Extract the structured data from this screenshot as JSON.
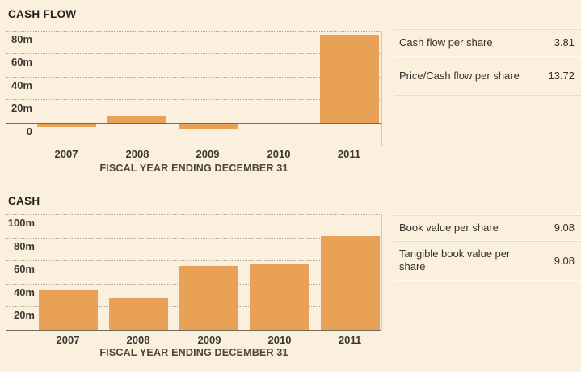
{
  "page": {
    "background_color": "#FBEFDD",
    "bar_color": "#E9A057",
    "gridline_color": "#B2A792",
    "axis_color": "#6E6A5D"
  },
  "chart_data": [
    {
      "type": "bar",
      "title": "CASH FLOW",
      "xlabel": "FISCAL YEAR ENDING DECEMBER 31",
      "categories": [
        "2007",
        "2008",
        "2009",
        "2010",
        "2011"
      ],
      "values": [
        -3,
        6,
        -5,
        0,
        76
      ],
      "unit": "millions",
      "ylim": [
        -20,
        80
      ],
      "grid": "dotted",
      "legend": "none",
      "yticks": [
        {
          "label": "80m",
          "value": 80
        },
        {
          "label": "60m",
          "value": 60
        },
        {
          "label": "40m",
          "value": 40
        },
        {
          "label": "20m",
          "value": 20
        },
        {
          "label": "0",
          "value": 0
        }
      ]
    },
    {
      "type": "bar",
      "title": "CASH",
      "xlabel": "FISCAL YEAR ENDING DECEMBER 31",
      "categories": [
        "2007",
        "2008",
        "2009",
        "2010",
        "2011"
      ],
      "values": [
        35,
        28,
        55,
        57,
        81
      ],
      "unit": "millions",
      "ylim": [
        0,
        100
      ],
      "grid": "dotted",
      "legend": "none",
      "yticks": [
        {
          "label": "100m",
          "value": 100
        },
        {
          "label": "80m",
          "value": 80
        },
        {
          "label": "60m",
          "value": 60
        },
        {
          "label": "40m",
          "value": 40
        },
        {
          "label": "20m",
          "value": 20
        },
        {
          "label": "",
          "value": 0
        }
      ]
    }
  ],
  "stats_panels": [
    {
      "rows": [
        {
          "label": "Cash flow per share",
          "value": "3.81"
        },
        {
          "label": "Price/Cash flow per share",
          "value": "13.72"
        }
      ]
    },
    {
      "rows": [
        {
          "label": "Book value per share",
          "value": "9.08"
        },
        {
          "label": "Tangible book value per share",
          "value": "9.08"
        }
      ]
    }
  ]
}
